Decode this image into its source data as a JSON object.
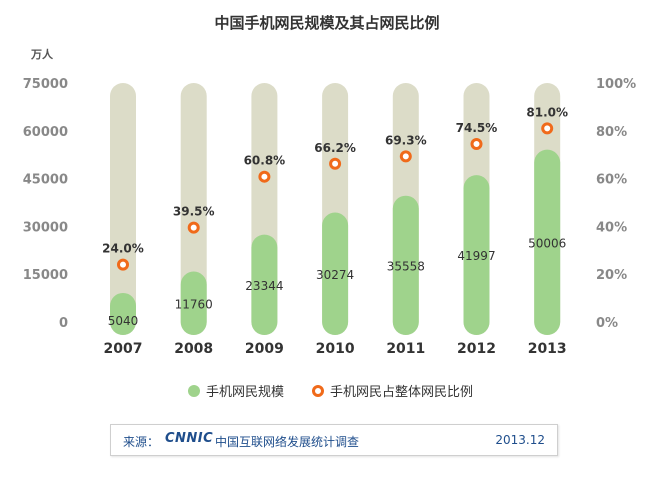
{
  "chart_data": {
    "type": "bar",
    "title": "中国手机网民规模及其占网民比例",
    "left_axis_unit": "万人",
    "categories": [
      "2007",
      "2008",
      "2009",
      "2010",
      "2011",
      "2012",
      "2013"
    ],
    "left_ticks": [
      "75000",
      "60000",
      "45000",
      "30000",
      "15000",
      "0"
    ],
    "right_ticks": [
      "100%",
      "80%",
      "60%",
      "40%",
      "20%",
      "0%"
    ],
    "ylim_left": [
      0,
      75000
    ],
    "ylim_right": [
      0,
      100
    ],
    "series": [
      {
        "name": "手机网民规模",
        "kind": "bar",
        "axis": "left",
        "color": "#9fd38c",
        "values": [
          5040,
          11760,
          23344,
          30274,
          35558,
          41997,
          50006
        ],
        "labels": [
          "5040",
          "11760",
          "23344",
          "30274",
          "35558",
          "41997",
          "50006"
        ]
      },
      {
        "name": "手机网民占整体网民比例",
        "kind": "marker",
        "axis": "right",
        "color": "#f06a1a",
        "values": [
          24.0,
          39.5,
          60.8,
          66.2,
          69.3,
          74.5,
          81.0
        ],
        "labels": [
          "24.0%",
          "39.5%",
          "60.8%",
          "66.2%",
          "69.3%",
          "74.5%",
          "81.0%"
        ]
      }
    ],
    "background_bar_color": "#dcdcc8",
    "grid": false,
    "legend_position": "bottom"
  },
  "source": {
    "label": "来源：",
    "logo": "CNNIC",
    "org": "中国互联网络发展统计调查",
    "date": "2013.12"
  }
}
